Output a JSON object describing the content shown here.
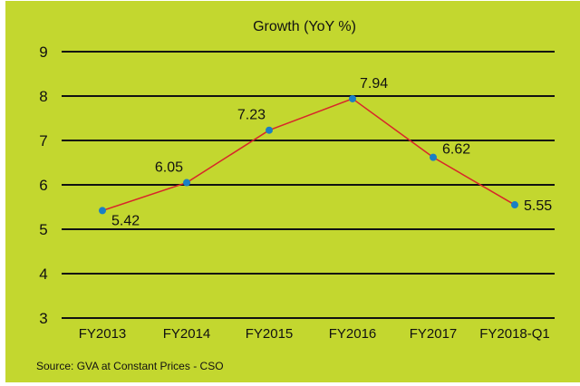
{
  "chart_data": {
    "type": "line",
    "title": "Growth (YoY %)",
    "categories": [
      "FY2013",
      "FY2014",
      "FY2015",
      "FY2016",
      "FY2017",
      "FY2018-Q1"
    ],
    "series": [
      {
        "values": [
          5.42,
          6.05,
          7.23,
          7.94,
          6.62,
          5.55
        ],
        "line_color": "#d8262a",
        "marker_color": "#1a7fc4"
      }
    ],
    "data_labels": [
      "5.42",
      "6.05",
      "7.23",
      "7.94",
      "6.62",
      "5.55"
    ],
    "ylim": [
      3,
      9
    ],
    "yticks": [
      "3",
      "4",
      "5",
      "6",
      "7",
      "8",
      "9"
    ],
    "grid": true,
    "source": "Source: GVA at Constant Prices - CSO",
    "background_color": "#c3d72f"
  }
}
